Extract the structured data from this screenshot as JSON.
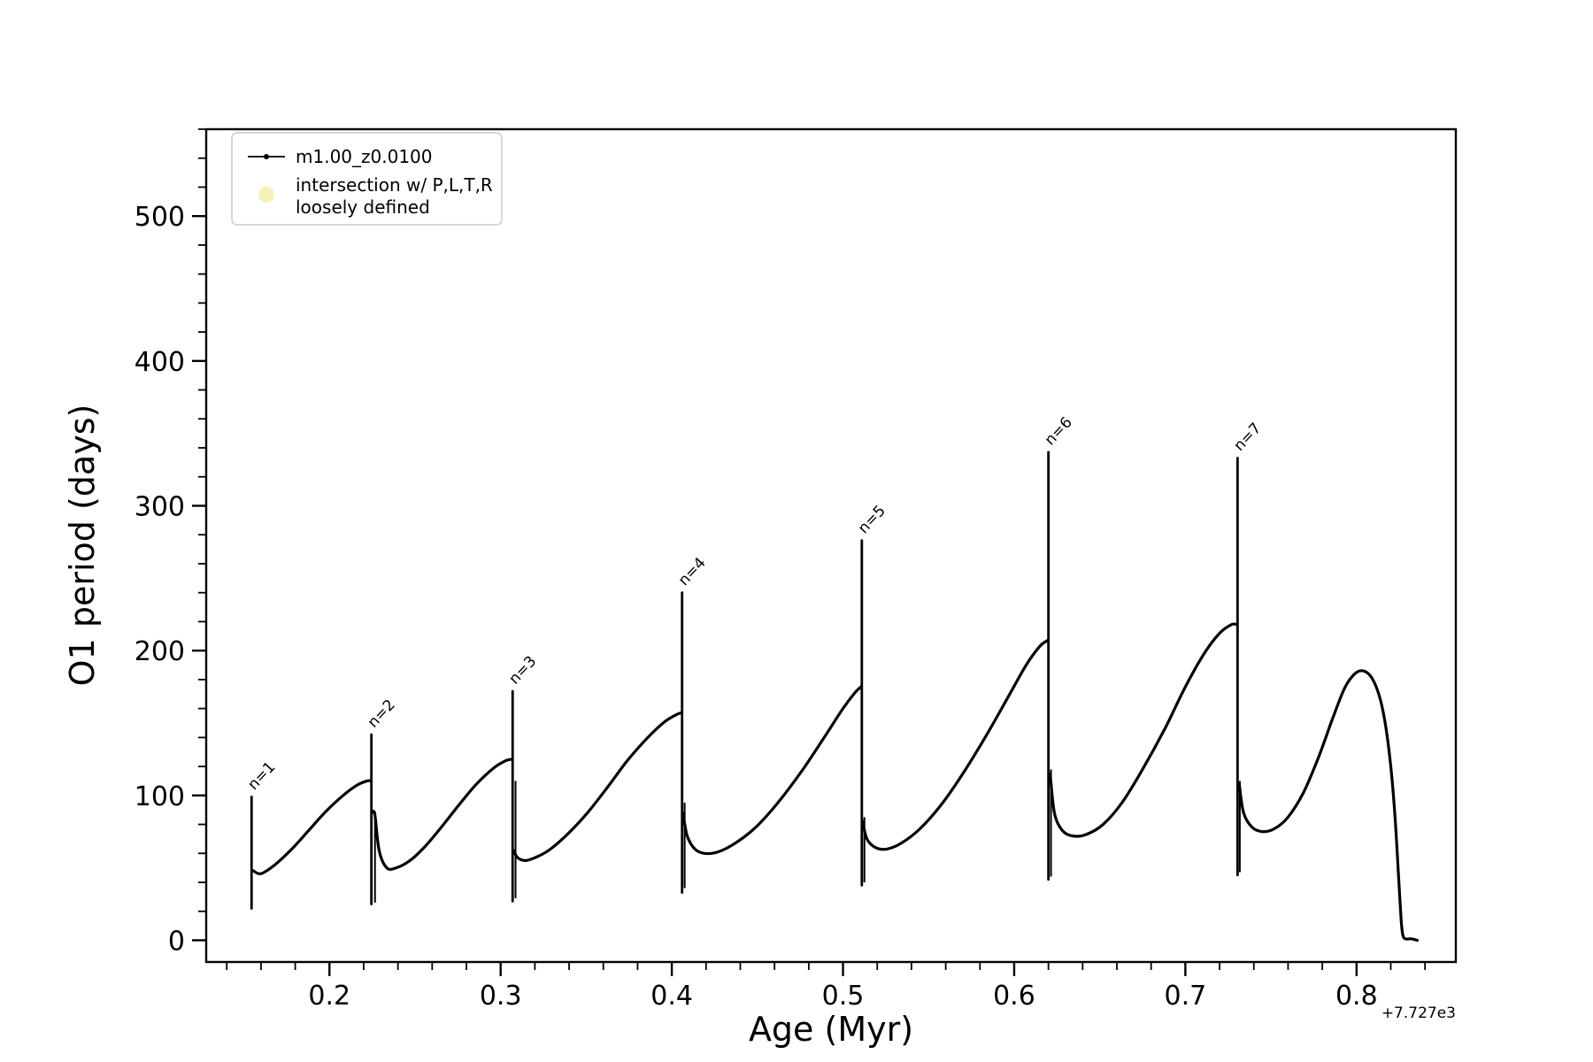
{
  "chart_data": {
    "type": "line",
    "title": "",
    "xlabel": "Age (Myr)",
    "ylabel": "O1 period (days)",
    "x_offset_text": "+7.727e3",
    "xlim": [
      0.128,
      0.858
    ],
    "ylim": [
      -15,
      560
    ],
    "x_major_ticks": [
      0.2,
      0.3,
      0.4,
      0.5,
      0.6,
      0.7,
      0.8
    ],
    "x_tick_labels": [
      "0.2",
      "0.3",
      "0.4",
      "0.5",
      "0.6",
      "0.7",
      "0.8"
    ],
    "x_minor_step": 0.02,
    "y_major_ticks": [
      0,
      100,
      200,
      300,
      400,
      500
    ],
    "y_tick_labels": [
      "0",
      "100",
      "200",
      "300",
      "400",
      "500"
    ],
    "y_minor_step": 20,
    "grid": false,
    "line_color": "#000000",
    "legend": {
      "position": "upper-left",
      "entries": [
        {
          "type": "line-dot",
          "label": "m1.00_z0.0100",
          "color": "#000000"
        },
        {
          "type": "dot",
          "label_lines": [
            "intersection w/ P,L,T,R",
            "loosely defined"
          ],
          "color": "#f5f0b4"
        }
      ]
    },
    "series_name": "m1.00_z0.0100",
    "envelope_segments": [
      [
        [
          0.1555,
          48
        ],
        [
          0.16,
          46
        ],
        [
          0.168,
          52
        ],
        [
          0.178,
          63
        ],
        [
          0.188,
          76
        ],
        [
          0.198,
          89
        ],
        [
          0.208,
          100
        ],
        [
          0.216,
          107
        ],
        [
          0.222,
          110
        ],
        [
          0.2243,
          110
        ]
      ],
      [
        [
          0.2248,
          88
        ],
        [
          0.2265,
          87
        ],
        [
          0.229,
          62
        ],
        [
          0.2335,
          50
        ],
        [
          0.239,
          50
        ],
        [
          0.247,
          55
        ],
        [
          0.256,
          65
        ],
        [
          0.266,
          79
        ],
        [
          0.276,
          94
        ],
        [
          0.286,
          108
        ],
        [
          0.296,
          119
        ],
        [
          0.303,
          124
        ],
        [
          0.3065,
          125
        ]
      ],
      [
        [
          0.3075,
          62
        ],
        [
          0.31,
          57
        ],
        [
          0.3145,
          55
        ],
        [
          0.32,
          57
        ],
        [
          0.328,
          62
        ],
        [
          0.338,
          72
        ],
        [
          0.35,
          87
        ],
        [
          0.362,
          105
        ],
        [
          0.374,
          124
        ],
        [
          0.386,
          140
        ],
        [
          0.396,
          151
        ],
        [
          0.403,
          156
        ],
        [
          0.4055,
          157
        ]
      ],
      [
        [
          0.4065,
          88
        ],
        [
          0.409,
          72
        ],
        [
          0.4135,
          63
        ],
        [
          0.419,
          60
        ],
        [
          0.427,
          61
        ],
        [
          0.437,
          67
        ],
        [
          0.449,
          78
        ],
        [
          0.462,
          95
        ],
        [
          0.476,
          117
        ],
        [
          0.489,
          140
        ],
        [
          0.5,
          160
        ],
        [
          0.507,
          171
        ],
        [
          0.5105,
          175
        ]
      ],
      [
        [
          0.5115,
          82
        ],
        [
          0.514,
          70
        ],
        [
          0.519,
          64
        ],
        [
          0.5255,
          63
        ],
        [
          0.534,
          67
        ],
        [
          0.545,
          77
        ],
        [
          0.557,
          93
        ],
        [
          0.57,
          115
        ],
        [
          0.583,
          140
        ],
        [
          0.596,
          167
        ],
        [
          0.607,
          190
        ],
        [
          0.615,
          203
        ],
        [
          0.6195,
          207
        ]
      ],
      [
        [
          0.621,
          115
        ],
        [
          0.6235,
          88
        ],
        [
          0.628,
          76
        ],
        [
          0.634,
          72
        ],
        [
          0.642,
          73
        ],
        [
          0.652,
          80
        ],
        [
          0.663,
          95
        ],
        [
          0.675,
          118
        ],
        [
          0.688,
          146
        ],
        [
          0.7,
          175
        ],
        [
          0.711,
          198
        ],
        [
          0.72,
          212
        ],
        [
          0.727,
          218
        ],
        [
          0.73,
          218
        ]
      ],
      [
        [
          0.7315,
          108
        ],
        [
          0.734,
          88
        ],
        [
          0.739,
          78
        ],
        [
          0.745,
          75
        ],
        [
          0.752,
          77
        ],
        [
          0.76,
          85
        ],
        [
          0.769,
          102
        ],
        [
          0.778,
          127
        ],
        [
          0.786,
          153
        ],
        [
          0.793,
          174
        ],
        [
          0.799,
          184
        ],
        [
          0.804,
          186
        ],
        [
          0.809,
          181
        ],
        [
          0.8135,
          168
        ],
        [
          0.817,
          148
        ],
        [
          0.82,
          120
        ],
        [
          0.8225,
          85
        ],
        [
          0.8245,
          45
        ],
        [
          0.826,
          15
        ],
        [
          0.827,
          4
        ],
        [
          0.8285,
          1
        ],
        [
          0.832,
          1
        ],
        [
          0.8355,
          0
        ]
      ]
    ],
    "spikes": [
      {
        "label": "n=1",
        "age": 0.1545,
        "low": 22,
        "high": 99
      },
      {
        "label": "n=2",
        "age": 0.2245,
        "low": 25,
        "high": 142
      },
      {
        "label": "n=3",
        "age": 0.307,
        "low": 27,
        "high": 172
      },
      {
        "label": "n=4",
        "age": 0.406,
        "low": 33,
        "high": 240
      },
      {
        "label": "n=5",
        "age": 0.511,
        "low": 38,
        "high": 276
      },
      {
        "label": "n=6",
        "age": 0.62,
        "low": 42,
        "high": 337
      },
      {
        "label": "n=7",
        "age": 0.7305,
        "low": 45,
        "high": 333
      }
    ],
    "sub_spikes": [
      {
        "age": 0.2266,
        "low": 26,
        "high": 89
      },
      {
        "age": 0.3087,
        "low": 29,
        "high": 110
      },
      {
        "age": 0.4075,
        "low": 36,
        "high": 95
      },
      {
        "age": 0.5125,
        "low": 40,
        "high": 85
      },
      {
        "age": 0.6215,
        "low": 44,
        "high": 118
      },
      {
        "age": 0.7318,
        "low": 47,
        "high": 110
      }
    ]
  }
}
